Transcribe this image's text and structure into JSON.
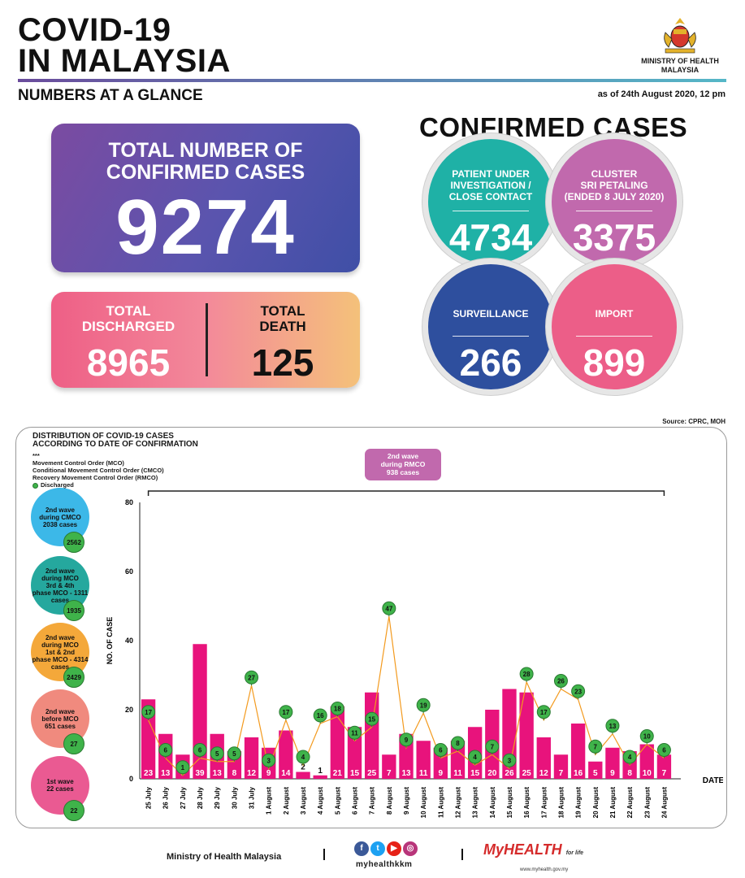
{
  "header": {
    "title_line1": "COVID-19",
    "title_line2": "IN MALAYSIA",
    "subtitle": "NUMBERS AT A GLANCE",
    "as_of": "as of 24th August 2020, 12 pm",
    "ministry_line1": "MINISTRY OF HEALTH",
    "ministry_line2": "MALAYSIA"
  },
  "totals": {
    "confirmed_label_line1": "TOTAL NUMBER OF",
    "confirmed_label_line2": "CONFIRMED CASES",
    "confirmed_value": "9274",
    "discharged_label_line1": "TOTAL",
    "discharged_label_line2": "DISCHARGED",
    "discharged_value": "8965",
    "death_label_line1": "TOTAL",
    "death_label_line2": "DEATH",
    "death_value": "125"
  },
  "confirmed_breakdown": {
    "heading": "CONFIRMED CASES",
    "items": [
      {
        "label_line1": "PATIENT UNDER",
        "label_line2": "INVESTIGATION /",
        "label_line3": "CLOSE CONTACT",
        "value": "4734",
        "color": "#1fb1a6"
      },
      {
        "label_line1": "CLUSTER",
        "label_line2": "SRI PETALING",
        "label_line3": "(ENDED 8 JULY 2020)",
        "value": "3375",
        "color": "#c169ad"
      },
      {
        "label_line1": "SURVEILLANCE",
        "label_line2": "",
        "label_line3": "",
        "value": "266",
        "color": "#2e4f9e"
      },
      {
        "label_line1": "IMPORT",
        "label_line2": "",
        "label_line3": "",
        "value": "899",
        "color": "#ec5e88"
      }
    ]
  },
  "source": "Source: CPRC, MOH",
  "chart_panel": {
    "title_line1": "DISTRIBUTION OF COVID-19 CASES",
    "title_line2": "ACCORDING TO DATE OF CONFIRMATION",
    "legend_marker": "***",
    "legend_mco": "Movement Control Order (MCO)",
    "legend_cmco": "Conditional Movement Control Order (CMCO)",
    "legend_rmco": "Recovery Movement Control Order (RMCO)",
    "legend_discharged": "Discharged",
    "rmco_box_line1": "2nd wave",
    "rmco_box_line2": "during RMCO",
    "rmco_box_line3": "938 cases"
  },
  "waves": [
    {
      "line1": "2nd wave",
      "line2": "during CMCO",
      "line3": "2038 cases",
      "line4": "",
      "count": "2562",
      "color": "#3cb8e8"
    },
    {
      "line1": "2nd wave",
      "line2": "during MCO",
      "line3": "3rd & 4th",
      "line4": "phase MCO - 1311 cases",
      "count": "1935",
      "color": "#25a89e"
    },
    {
      "line1": "2nd wave",
      "line2": "during MCO",
      "line3": "1st & 2nd",
      "line4": "phase MCO - 4314 cases",
      "count": "2429",
      "color": "#f4a83a"
    },
    {
      "line1": "2nd wave",
      "line2": "before MCO",
      "line3": "651 cases",
      "line4": "",
      "count": "27",
      "color": "#f08a7e"
    },
    {
      "line1": "1st wave",
      "line2": "22 cases",
      "line3": "",
      "line4": "",
      "count": "22",
      "color": "#ea5a92"
    }
  ],
  "chart_data": {
    "type": "bar",
    "title": "DISTRIBUTION OF COVID-19 CASES ACCORDING TO DATE OF CONFIRMATION",
    "xlabel": "DATE",
    "ylabel": "NO. OF CASE",
    "ylim": [
      0,
      80
    ],
    "yticks": [
      "0",
      "20",
      "40",
      "60",
      "80"
    ],
    "categories": [
      "25 July",
      "26 July",
      "27 July",
      "28 July",
      "29 July",
      "30 July",
      "31 July",
      "1 August",
      "2 August",
      "3 August",
      "4 August",
      "5 August",
      "6 August",
      "7 August",
      "8 August",
      "9 August",
      "10 August",
      "11 August",
      "12 August",
      "13 August",
      "14 August",
      "15 August",
      "16 August",
      "17 August",
      "18 August",
      "19 August",
      "20 August",
      "21 August",
      "22 August",
      "23 August",
      "24 August"
    ],
    "series": [
      {
        "name": "Confirmed cases",
        "values": [
          23,
          13,
          7,
          39,
          13,
          8,
          12,
          9,
          14,
          2,
          1,
          21,
          15,
          25,
          7,
          13,
          11,
          9,
          11,
          15,
          20,
          26,
          25,
          12,
          7,
          16,
          5,
          9,
          8,
          10,
          7
        ],
        "color": "#e8137c"
      },
      {
        "name": "Discharged",
        "values": [
          17,
          6,
          1,
          6,
          5,
          5,
          27,
          3,
          17,
          4,
          16,
          18,
          11,
          15,
          47,
          9,
          19,
          6,
          8,
          4,
          7,
          3,
          28,
          17,
          26,
          23,
          7,
          13,
          4,
          10,
          6
        ],
        "color": "#3fb34a"
      }
    ],
    "annotation": {
      "text": "2nd wave during RMCO 938 cases",
      "from": "25 July",
      "to": "24 August"
    }
  },
  "footer": {
    "ministry": "Ministry of Health Malaysia",
    "social_handle": "myhealthkkm",
    "social_icons": [
      "f",
      "t",
      "▶",
      "◎"
    ],
    "brand": "MyHEALTH",
    "brand_tag": "for life",
    "url": "www.myhealth.gov.my"
  }
}
